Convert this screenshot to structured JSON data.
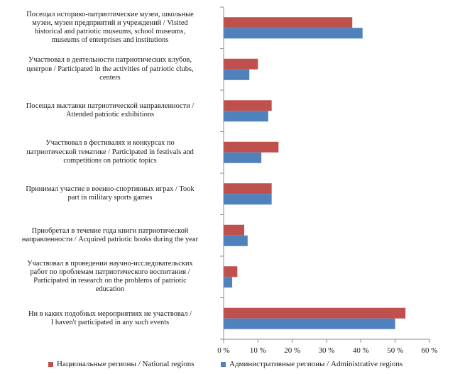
{
  "chart_data": {
    "type": "bar",
    "orientation": "horizontal",
    "categories": [
      "Посещал историко-патриотические музеи, школьные музеи, музеи предприятий и учреждений / Visited historical and patriotic museums, school museums, museums of enterprises and institutions",
      "Участвовал в деятельности патриотических клубов, центров / Participated in the activities of patriotic clubs, centers",
      "Посещал выставки патриотической направленности / Attended patriotic exhibitions",
      "Участвовал в фестивалях и конкурсах по патриотической тематике / Participated in festivals and competitions on patriotic topics",
      "Принимал участие в военно-спортивных играх / Took part in military sports games",
      "Приобретал в течение года книги патриотической направленности / Acquired patriotic books during the year",
      "Участвовал в проведении научно-исследовательских работ по проблемам патриотического воспитания / Participated in research on the problems of patriotic education",
      "Ни в каких подобных мероприятиях не участвовал / I haven't participated in any such events"
    ],
    "category_lines": [
      [
        "Посещал историко-патриотические музеи, школьные",
        "музеи, музеи предприятий и учреждений / Visited",
        "historical and patriotic museums, school museums,",
        "museums of enterprises and institutions"
      ],
      [
        "Участвовал в деятельности патриотических клубов,",
        "центров / Participated in the activities of patriotic clubs,",
        "centers"
      ],
      [
        "Посещал выставки патриотической направленности /",
        "Attended patriotic exhibitions"
      ],
      [
        "Участвовал в фестивалях и конкурсах по",
        "патриотической тематике / Participated in festivals and",
        "competitions on patriotic topics"
      ],
      [
        "Принимал участие в военно-спортивных играх / Took",
        "part in military sports games"
      ],
      [
        "Приобретал в течение года книги патриотической",
        "направленности / Acquired patriotic books during the year"
      ],
      [
        "Участвовал в проведении научно-исследовательских",
        "работ по проблемам патриотического воспитания /",
        "Participated in research on the problems of patriotic",
        "education"
      ],
      [
        "Ни в каких подобных мероприятиях не участвовал /",
        "I haven't participated in any such events"
      ]
    ],
    "series": [
      {
        "name": "Национальные регионы / National regions",
        "color": "#c0504d",
        "values": [
          37.5,
          10.0,
          14.0,
          16.0,
          14.0,
          6.0,
          4.0,
          53.0
        ]
      },
      {
        "name": "Административные регионы / Administrative regions",
        "color": "#4f81bd",
        "values": [
          40.5,
          7.5,
          13.0,
          11.0,
          14.0,
          7.0,
          2.5,
          50.0
        ]
      }
    ],
    "xlim": [
      0,
      60
    ],
    "xticks": [
      "0 %",
      "10 %",
      "20 %",
      "30 %",
      "40 %",
      "50 %",
      "60 %"
    ],
    "grid": false,
    "legend_position": "bottom"
  }
}
